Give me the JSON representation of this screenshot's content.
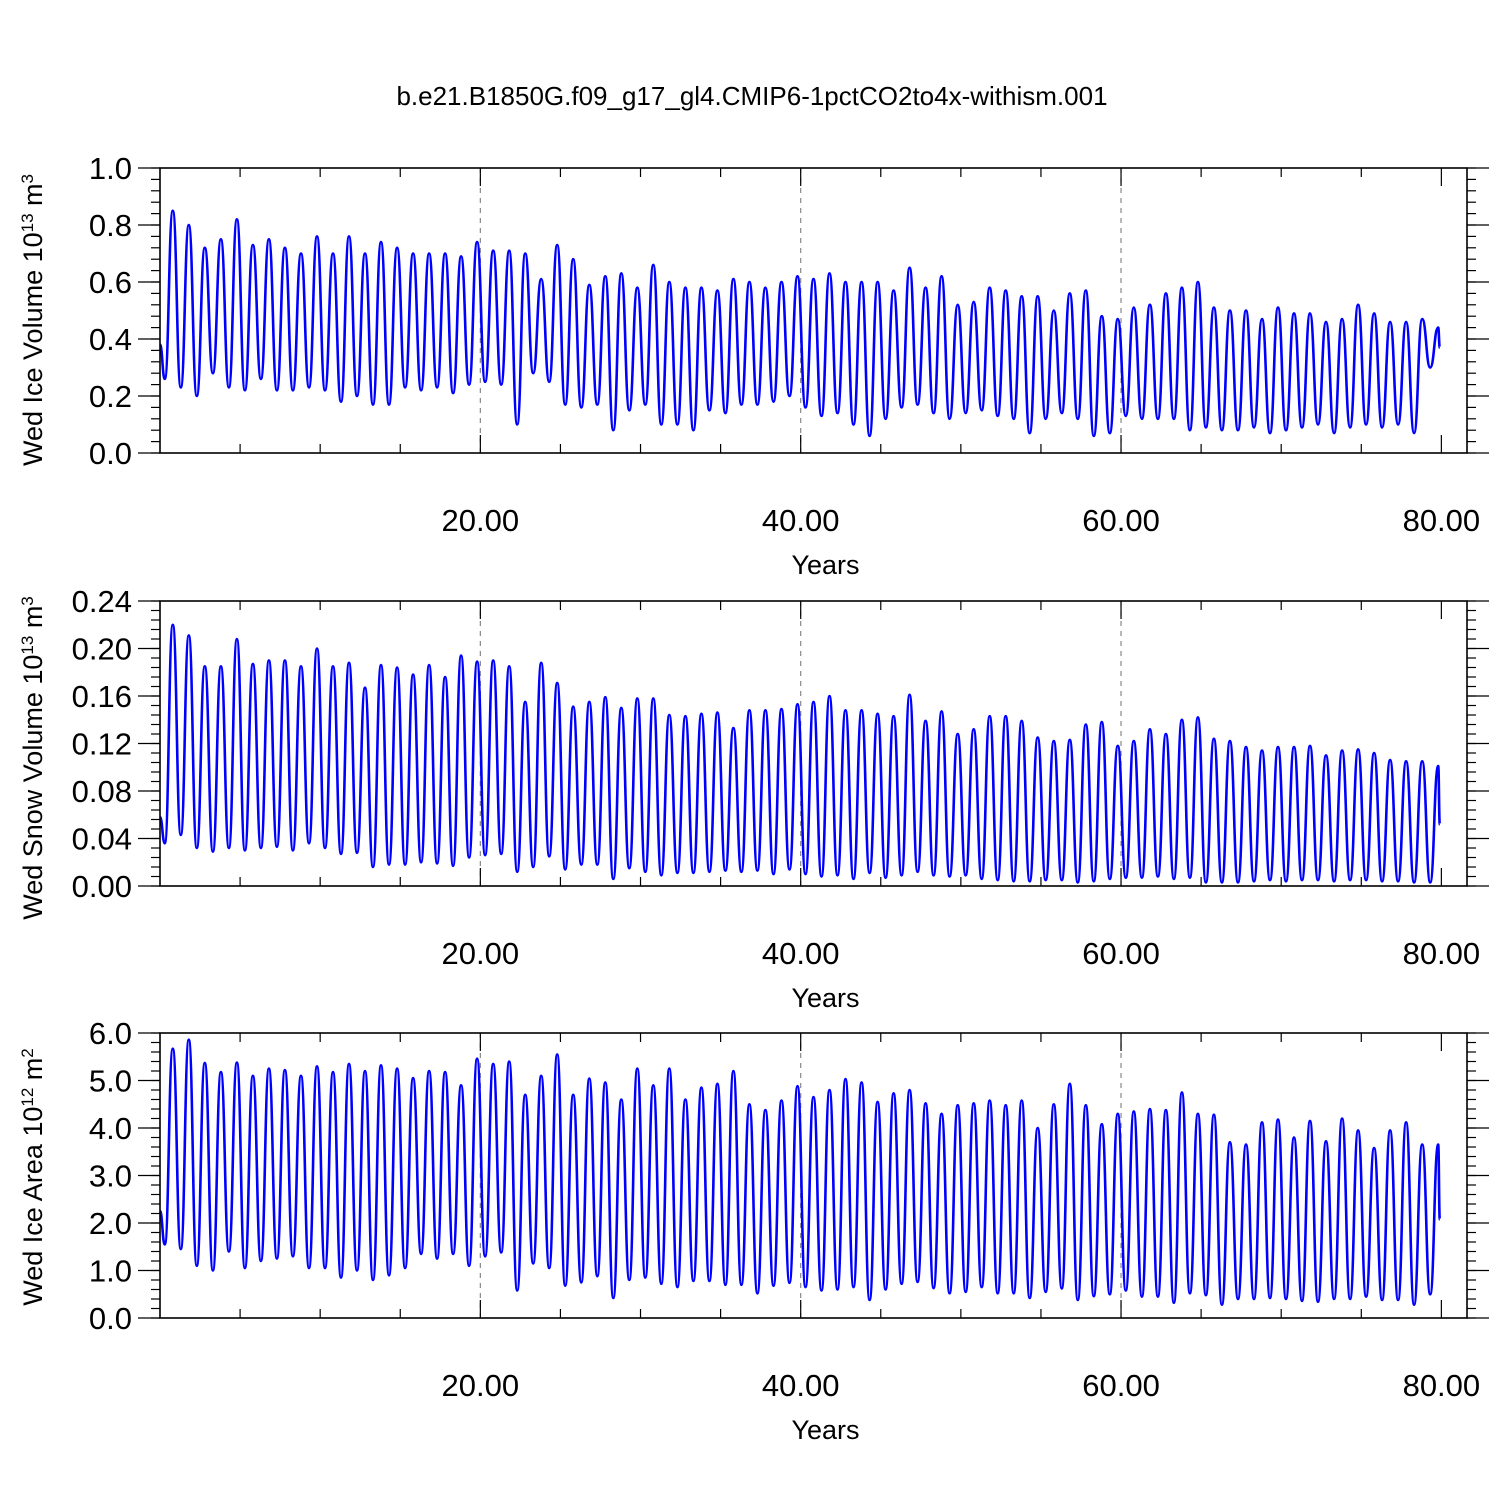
{
  "figure": {
    "title": "b.e21.B1850G.f09_g17_gl4.CMIP6-1pctCO2to4x-withism.001",
    "line_color": "#0000ff"
  },
  "chart_data": [
    {
      "type": "line",
      "xlabel": "Years",
      "ylabel": "Wed Ice Volume 10",
      "ylabel_sup": "13",
      "ylabel_unit": " m",
      "ylabel_unit_sup": "3",
      "xlim": [
        0,
        81.6
      ],
      "ylim": [
        0,
        1.0
      ],
      "x_ticks": [
        20,
        40,
        60,
        80
      ],
      "x_tick_labels": [
        "20.00",
        "40.00",
        "60.00",
        "80.00"
      ],
      "y_ticks": [
        0,
        0.2,
        0.4,
        0.6,
        0.8,
        1.0
      ],
      "y_tick_labels": [
        "0.0",
        "0.2",
        "0.4",
        "0.6",
        "0.8",
        "1.0"
      ],
      "y_minor_step": 0.04,
      "x_gridlines": [
        20,
        40,
        60
      ],
      "series": [
        {
          "start_x": 0.0,
          "start_value": 0.38,
          "annual_max": [
            0.85,
            0.8,
            0.72,
            0.75,
            0.82,
            0.73,
            0.75,
            0.72,
            0.7,
            0.76,
            0.7,
            0.76,
            0.7,
            0.74,
            0.72,
            0.7,
            0.7,
            0.7,
            0.69,
            0.74,
            0.71,
            0.71,
            0.7,
            0.61,
            0.73,
            0.68,
            0.59,
            0.62,
            0.63,
            0.58,
            0.66,
            0.6,
            0.58,
            0.58,
            0.57,
            0.61,
            0.6,
            0.58,
            0.6,
            0.62,
            0.61,
            0.63,
            0.6,
            0.6,
            0.6,
            0.57,
            0.65,
            0.58,
            0.62,
            0.52,
            0.53,
            0.58,
            0.57,
            0.55,
            0.55,
            0.5,
            0.56,
            0.57,
            0.48,
            0.47,
            0.51,
            0.52,
            0.56,
            0.58,
            0.6,
            0.51,
            0.5,
            0.5,
            0.47,
            0.51,
            0.49,
            0.49,
            0.46,
            0.47,
            0.52,
            0.49,
            0.46,
            0.46,
            0.47,
            0.44
          ],
          "annual_min": [
            0.26,
            0.23,
            0.2,
            0.28,
            0.23,
            0.22,
            0.26,
            0.22,
            0.22,
            0.23,
            0.22,
            0.18,
            0.2,
            0.17,
            0.17,
            0.23,
            0.22,
            0.23,
            0.21,
            0.24,
            0.25,
            0.24,
            0.1,
            0.28,
            0.25,
            0.17,
            0.16,
            0.17,
            0.08,
            0.15,
            0.17,
            0.1,
            0.1,
            0.08,
            0.15,
            0.14,
            0.17,
            0.17,
            0.18,
            0.2,
            0.16,
            0.13,
            0.14,
            0.1,
            0.06,
            0.12,
            0.16,
            0.17,
            0.14,
            0.12,
            0.14,
            0.15,
            0.13,
            0.12,
            0.07,
            0.12,
            0.14,
            0.12,
            0.06,
            0.07,
            0.13,
            0.12,
            0.12,
            0.12,
            0.08,
            0.09,
            0.08,
            0.08,
            0.09,
            0.07,
            0.08,
            0.09,
            0.1,
            0.07,
            0.09,
            0.1,
            0.09,
            0.1,
            0.07,
            0.3
          ]
        }
      ]
    },
    {
      "type": "line",
      "xlabel": "Years",
      "ylabel": "Wed Snow Volume 10",
      "ylabel_sup": "13",
      "ylabel_unit": " m",
      "ylabel_unit_sup": "3",
      "xlim": [
        0,
        81.6
      ],
      "ylim": [
        0,
        0.24
      ],
      "x_ticks": [
        20,
        40,
        60,
        80
      ],
      "x_tick_labels": [
        "20.00",
        "40.00",
        "60.00",
        "80.00"
      ],
      "y_ticks": [
        0,
        0.04,
        0.08,
        0.12,
        0.16,
        0.2,
        0.24
      ],
      "y_tick_labels": [
        "0.00",
        "0.04",
        "0.08",
        "0.12",
        "0.16",
        "0.20",
        "0.24"
      ],
      "y_minor_step": 0.008,
      "x_gridlines": [
        20,
        40,
        60
      ],
      "series": [
        {
          "start_x": 0.0,
          "start_value": 0.058,
          "annual_max": [
            0.22,
            0.211,
            0.185,
            0.185,
            0.208,
            0.187,
            0.19,
            0.19,
            0.185,
            0.2,
            0.185,
            0.188,
            0.167,
            0.186,
            0.184,
            0.178,
            0.186,
            0.176,
            0.194,
            0.189,
            0.19,
            0.185,
            0.155,
            0.188,
            0.171,
            0.151,
            0.155,
            0.159,
            0.15,
            0.158,
            0.158,
            0.144,
            0.143,
            0.145,
            0.146,
            0.133,
            0.148,
            0.148,
            0.149,
            0.153,
            0.155,
            0.16,
            0.148,
            0.148,
            0.145,
            0.143,
            0.161,
            0.139,
            0.147,
            0.128,
            0.132,
            0.143,
            0.143,
            0.139,
            0.125,
            0.122,
            0.123,
            0.136,
            0.138,
            0.118,
            0.122,
            0.132,
            0.128,
            0.14,
            0.142,
            0.124,
            0.122,
            0.117,
            0.114,
            0.117,
            0.117,
            0.118,
            0.11,
            0.114,
            0.115,
            0.112,
            0.106,
            0.105,
            0.105,
            0.101
          ],
          "annual_min": [
            0.036,
            0.043,
            0.032,
            0.029,
            0.032,
            0.03,
            0.032,
            0.033,
            0.03,
            0.036,
            0.032,
            0.027,
            0.028,
            0.016,
            0.018,
            0.018,
            0.02,
            0.019,
            0.017,
            0.024,
            0.026,
            0.027,
            0.012,
            0.016,
            0.025,
            0.014,
            0.018,
            0.018,
            0.006,
            0.015,
            0.012,
            0.009,
            0.011,
            0.011,
            0.012,
            0.013,
            0.012,
            0.013,
            0.01,
            0.014,
            0.01,
            0.008,
            0.009,
            0.006,
            0.011,
            0.007,
            0.009,
            0.012,
            0.009,
            0.008,
            0.009,
            0.006,
            0.005,
            0.004,
            0.004,
            0.005,
            0.005,
            0.003,
            0.004,
            0.006,
            0.007,
            0.007,
            0.008,
            0.006,
            0.007,
            0.003,
            0.003,
            0.003,
            0.004,
            0.005,
            0.004,
            0.005,
            0.005,
            0.004,
            0.005,
            0.005,
            0.004,
            0.004,
            0.003,
            0.003
          ]
        }
      ]
    },
    {
      "type": "line",
      "xlabel": "Years",
      "ylabel": "Wed Ice Area 10",
      "ylabel_sup": "12",
      "ylabel_unit": " m",
      "ylabel_unit_sup": "2",
      "xlim": [
        0,
        81.6
      ],
      "ylim": [
        0,
        6.0
      ],
      "x_ticks": [
        20,
        40,
        60,
        80
      ],
      "x_tick_labels": [
        "20.00",
        "40.00",
        "60.00",
        "80.00"
      ],
      "y_ticks": [
        0,
        1,
        2,
        3,
        4,
        5,
        6
      ],
      "y_tick_labels": [
        "0.0",
        "1.0",
        "2.0",
        "3.0",
        "4.0",
        "5.0",
        "6.0"
      ],
      "y_minor_step": 0.2,
      "x_gridlines": [
        20,
        40,
        60
      ],
      "series": [
        {
          "start_x": 0.0,
          "start_value": 2.25,
          "annual_max": [
            5.67,
            5.86,
            5.37,
            5.18,
            5.38,
            5.1,
            5.25,
            5.22,
            5.1,
            5.3,
            5.18,
            5.35,
            5.2,
            5.32,
            5.25,
            5.05,
            5.2,
            5.18,
            4.9,
            5.46,
            5.35,
            5.4,
            4.7,
            5.1,
            5.55,
            4.7,
            5.04,
            4.96,
            4.6,
            5.25,
            4.9,
            5.25,
            4.6,
            4.85,
            4.93,
            5.2,
            4.5,
            4.38,
            4.58,
            4.88,
            4.65,
            4.8,
            5.03,
            4.96,
            4.55,
            4.73,
            4.8,
            4.52,
            4.3,
            4.48,
            4.52,
            4.58,
            4.48,
            4.58,
            4.0,
            4.5,
            4.93,
            4.48,
            4.08,
            4.3,
            4.35,
            4.4,
            4.38,
            4.75,
            4.3,
            4.28,
            3.7,
            3.65,
            4.12,
            4.18,
            3.8,
            4.15,
            3.72,
            4.2,
            3.95,
            3.58,
            3.95,
            4.12,
            3.65,
            3.65
          ],
          "annual_min": [
            1.55,
            1.45,
            1.1,
            1.0,
            1.4,
            1.05,
            1.2,
            1.25,
            1.3,
            1.05,
            1.05,
            0.85,
            1.0,
            0.8,
            0.9,
            1.05,
            1.35,
            1.25,
            1.35,
            1.1,
            1.3,
            1.38,
            0.58,
            1.15,
            1.05,
            0.68,
            0.75,
            0.88,
            0.42,
            0.8,
            0.85,
            0.72,
            0.65,
            0.78,
            0.78,
            0.7,
            0.7,
            0.52,
            0.68,
            0.74,
            0.65,
            0.58,
            0.6,
            0.65,
            0.38,
            0.6,
            0.72,
            0.76,
            0.63,
            0.52,
            0.55,
            0.65,
            0.52,
            0.52,
            0.42,
            0.55,
            0.62,
            0.38,
            0.46,
            0.5,
            0.58,
            0.45,
            0.45,
            0.32,
            0.52,
            0.48,
            0.28,
            0.4,
            0.4,
            0.42,
            0.4,
            0.36,
            0.34,
            0.4,
            0.4,
            0.45,
            0.38,
            0.38,
            0.28,
            0.5
          ]
        }
      ]
    }
  ]
}
